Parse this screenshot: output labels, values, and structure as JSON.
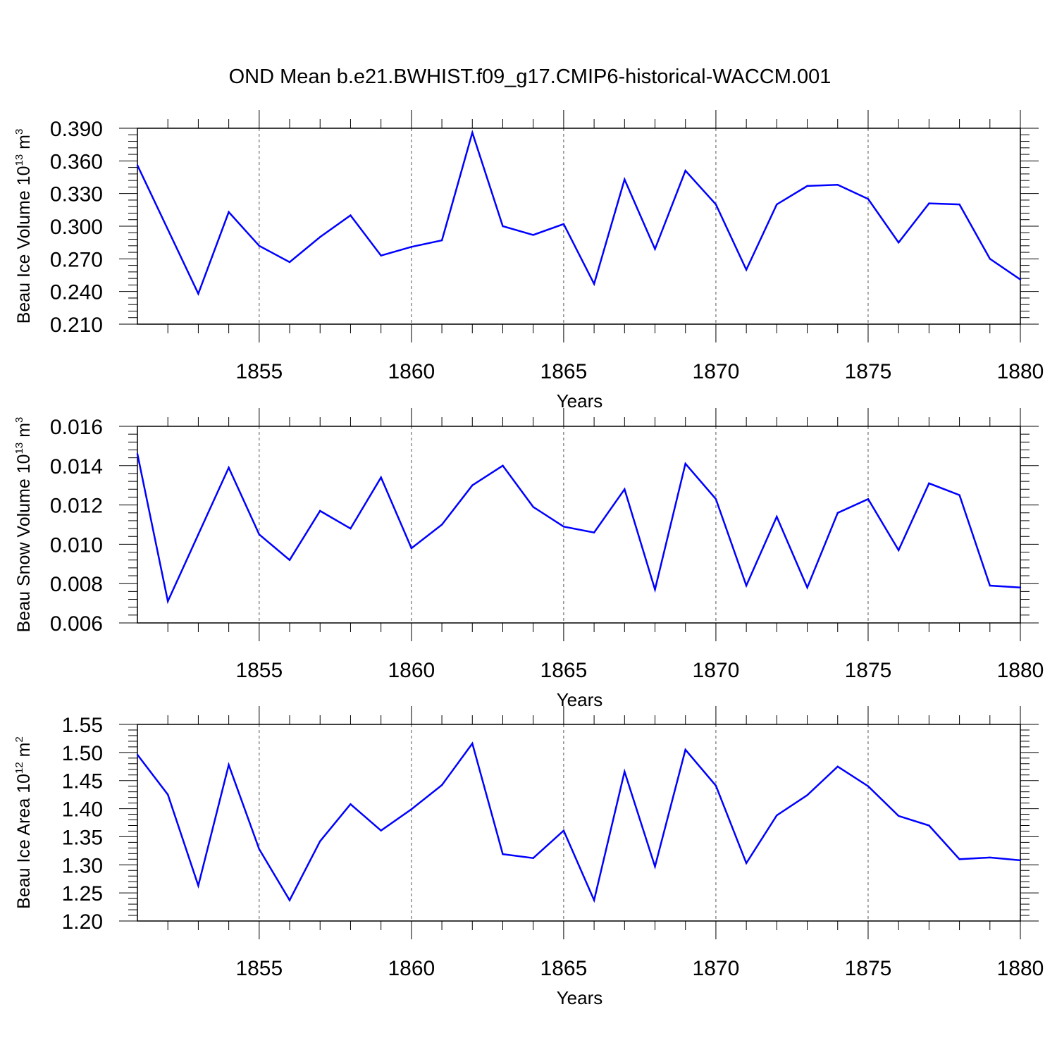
{
  "chart_data": {
    "title": "OND Mean b.e21.BWHIST.f09_g17.CMIP6-historical-WACCM.001",
    "x": [
      1851,
      1852,
      1853,
      1854,
      1855,
      1856,
      1857,
      1858,
      1859,
      1860,
      1861,
      1862,
      1863,
      1864,
      1865,
      1866,
      1867,
      1868,
      1869,
      1870,
      1871,
      1872,
      1873,
      1874,
      1875,
      1876,
      1877,
      1878,
      1879,
      1880
    ],
    "xlim": [
      1851,
      1880
    ],
    "xticks": [
      1855,
      1860,
      1865,
      1870,
      1875,
      1880
    ],
    "line_color": "#0000ff",
    "panels": [
      {
        "type": "line",
        "ylabel": {
          "text": "Beau Ice Volume 10",
          "exp": "13",
          "unit": " m",
          "unit_exp": "3"
        },
        "xlabel": "Years",
        "ylim": [
          0.21,
          0.39
        ],
        "yticks": [
          "0.210",
          "0.240",
          "0.270",
          "0.300",
          "0.330",
          "0.360",
          "0.390"
        ],
        "values": [
          0.356,
          0.297,
          0.238,
          0.313,
          0.282,
          0.267,
          0.29,
          0.31,
          0.273,
          0.281,
          0.287,
          0.386,
          0.3,
          0.292,
          0.302,
          0.247,
          0.343,
          0.279,
          0.351,
          0.32,
          0.26,
          0.32,
          0.337,
          0.338,
          0.325,
          0.285,
          0.321,
          0.32,
          0.27,
          0.251
        ]
      },
      {
        "type": "line",
        "ylabel": {
          "text": "Beau Snow Volume 10",
          "exp": "13",
          "unit": " m",
          "unit_exp": "3"
        },
        "xlabel": "Years",
        "ylim": [
          0.006,
          0.016
        ],
        "yticks": [
          "0.006",
          "0.008",
          "0.010",
          "0.012",
          "0.014",
          "0.016"
        ],
        "values": [
          0.0146,
          0.0071,
          0.0105,
          0.0139,
          0.0105,
          0.0092,
          0.0117,
          0.0108,
          0.0134,
          0.0098,
          0.011,
          0.013,
          0.014,
          0.0119,
          0.0109,
          0.0106,
          0.0128,
          0.0077,
          0.0141,
          0.0123,
          0.0079,
          0.0114,
          0.0078,
          0.0116,
          0.0123,
          0.0097,
          0.0131,
          0.0125,
          0.0079,
          0.0078
        ]
      },
      {
        "type": "line",
        "ylabel": {
          "text": "Beau Ice Area 10",
          "exp": "12",
          "unit": " m",
          "unit_exp": "2"
        },
        "xlabel": "Years",
        "ylim": [
          1.2,
          1.55
        ],
        "yticks": [
          "1.20",
          "1.25",
          "1.30",
          "1.35",
          "1.40",
          "1.45",
          "1.50",
          "1.55"
        ],
        "values": [
          1.496,
          1.425,
          1.263,
          1.478,
          1.328,
          1.237,
          1.342,
          1.408,
          1.361,
          1.399,
          1.442,
          1.516,
          1.319,
          1.312,
          1.361,
          1.237,
          1.466,
          1.297,
          1.505,
          1.441,
          1.303,
          1.388,
          1.424,
          1.475,
          1.44,
          1.387,
          1.37,
          1.31,
          1.313,
          1.308
        ]
      }
    ]
  }
}
